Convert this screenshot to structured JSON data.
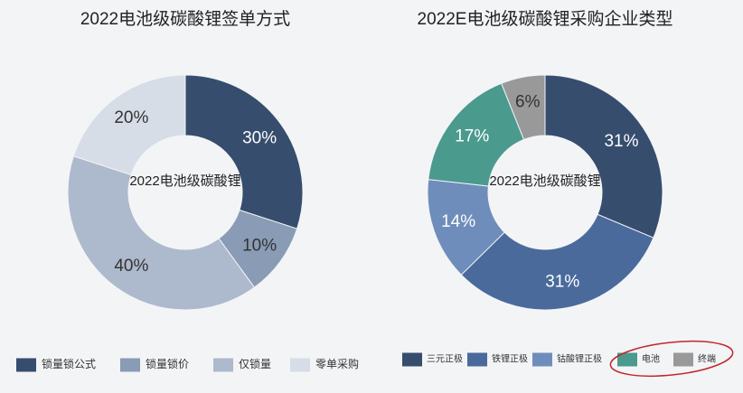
{
  "chart_data": [
    {
      "type": "pie",
      "title": "2022电池级碳酸锂签单方式",
      "center_label": "2022电池级碳酸锂",
      "categories": [
        "锁量锁公式",
        "锁量锁价",
        "仅锁量",
        "零单采购"
      ],
      "values": [
        30,
        10,
        40,
        20
      ],
      "value_labels": [
        "30%",
        "10%",
        "40%",
        "20%"
      ],
      "colors": [
        "#364d6e",
        "#8a9bb5",
        "#adb9cc",
        "#d6dde7"
      ],
      "legend": "bottom"
    },
    {
      "type": "pie",
      "title": "2022E电池级碳酸锂采购企业类型",
      "center_label": "2022电池级碳酸锂",
      "categories": [
        "三元正极",
        "铁锂正极",
        "钴酸锂正极",
        "电池",
        "终端"
      ],
      "values": [
        31,
        31,
        14,
        17,
        6
      ],
      "value_labels": [
        "31%",
        "31%",
        "14%",
        "17%",
        "6%"
      ],
      "colors": [
        "#364d6e",
        "#4a6a9c",
        "#6f8dbb",
        "#4a9a8e",
        "#999999"
      ],
      "legend": "bottom"
    }
  ]
}
